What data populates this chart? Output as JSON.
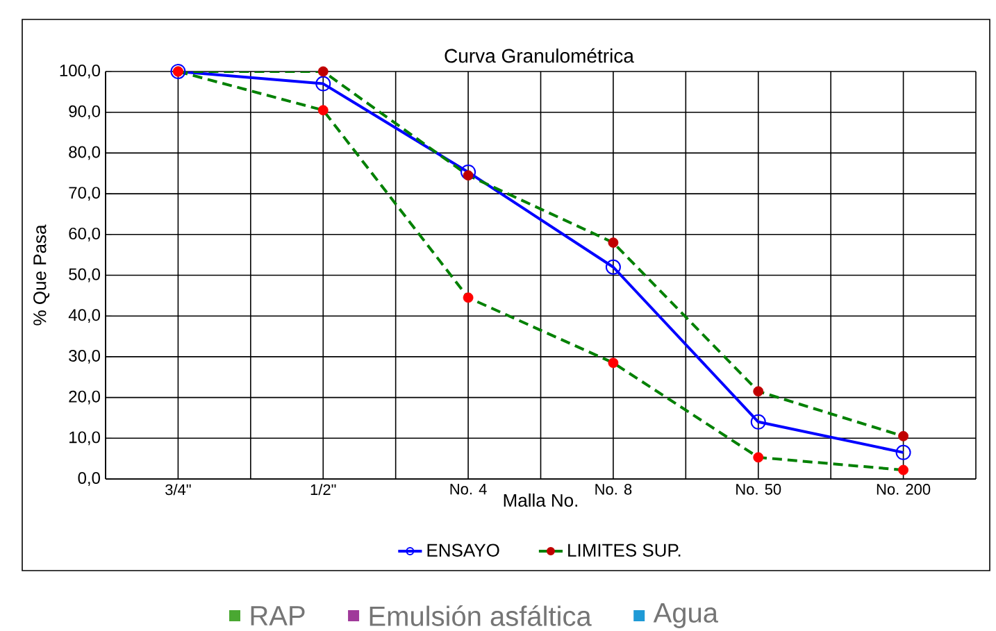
{
  "chart_data": {
    "type": "line",
    "title": "Curva Granulométrica",
    "xlabel": "Malla No.",
    "ylabel": "% Que Pasa",
    "categories": [
      "3/4\"",
      "1/2\"",
      "No. 4",
      "No. 8",
      "No. 50",
      "No. 200"
    ],
    "ylim": [
      0,
      100
    ],
    "yticks": [
      {
        "value": 0,
        "label": "0,0"
      },
      {
        "value": 10,
        "label": "10,0"
      },
      {
        "value": 20,
        "label": "20,0"
      },
      {
        "value": 30,
        "label": "30,0"
      },
      {
        "value": 40,
        "label": "40,0"
      },
      {
        "value": 50,
        "label": "50,0"
      },
      {
        "value": 60,
        "label": "60,0"
      },
      {
        "value": 70,
        "label": "70,0"
      },
      {
        "value": 80,
        "label": "80,0"
      },
      {
        "value": 90,
        "label": "90,0"
      },
      {
        "value": 100,
        "label": "100,0"
      }
    ],
    "grid": true,
    "legend": "bottom",
    "marker": "circle",
    "series": [
      {
        "name": "ENSAYO",
        "color": "#0000ff",
        "values": [
          100,
          97,
          75.3,
          52,
          14,
          6.5
        ]
      },
      {
        "name": "LIMITES SUP.",
        "color": "#008000",
        "line_style": "dashed",
        "colors": [
          "#c00000",
          "#c00000",
          "#c00000",
          "#c00000",
          "#c00000",
          "#c00000"
        ],
        "values": [
          100,
          100,
          74.5,
          58,
          21.5,
          10.5
        ]
      },
      {
        "color": "#008000",
        "line_style": "dashed",
        "colors": [
          "#ff0000",
          "#ff0000",
          "#ff0000",
          "#ff0000",
          "#ff0000",
          "#ff0000"
        ],
        "values": [
          100,
          90.5,
          44.5,
          28.5,
          5.3,
          2.2
        ]
      },
      {
        "name": "RAP",
        "type": "bar",
        "color": "#4aa832",
        "values": [
          null,
          null,
          null,
          null,
          null,
          null
        ]
      },
      {
        "name": "Emulsión asfáltica",
        "type": "bar",
        "color": "#a03a9a",
        "values": [
          null,
          null,
          null,
          null,
          null,
          null
        ]
      },
      {
        "name": "Agua",
        "type": "bar",
        "color": "#1f9ad6",
        "values": [
          null,
          null,
          null,
          null,
          null,
          null
        ]
      }
    ]
  }
}
